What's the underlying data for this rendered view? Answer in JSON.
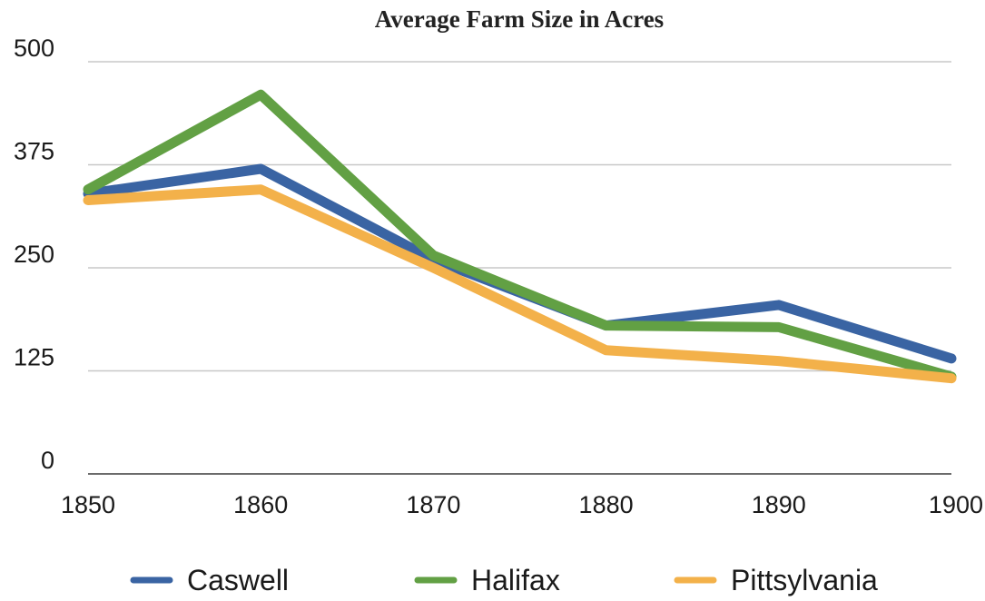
{
  "chart_data": {
    "type": "line",
    "title": "Average Farm Size in Acres",
    "xlabel": "",
    "ylabel": "",
    "x": [
      "1850",
      "1860",
      "1870",
      "1880",
      "1890",
      "1900"
    ],
    "y_ticks": [
      "0",
      "125",
      "250",
      "375",
      "500"
    ],
    "ylim": [
      0,
      500
    ],
    "grid": true,
    "legend_position": "bottom",
    "series": [
      {
        "name": "Caswell",
        "color": "#3a64a3",
        "values": [
          340,
          370,
          260,
          180,
          205,
          140
        ]
      },
      {
        "name": "Halifax",
        "color": "#62a044",
        "values": [
          345,
          460,
          265,
          180,
          178,
          118
        ]
      },
      {
        "name": "Pittsylvania",
        "color": "#f3b14a",
        "values": [
          332,
          345,
          250,
          150,
          137,
          116
        ]
      }
    ]
  }
}
